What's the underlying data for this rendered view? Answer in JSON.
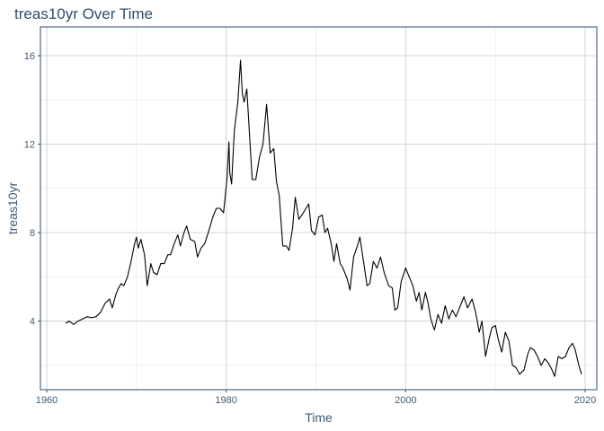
{
  "chart_data": {
    "type": "line",
    "title": "treas10yr Over Time",
    "xlabel": "Time",
    "ylabel": "treas10yr",
    "xlim": [
      1959.3,
      2021.3
    ],
    "ylim": [
      0.9,
      17.3
    ],
    "x_ticks": [
      1960,
      1980,
      2000,
      2020
    ],
    "y_ticks": [
      4,
      8,
      12,
      16
    ],
    "grid": true,
    "series": [
      {
        "color": "#000000",
        "points": [
          [
            1962.1,
            3.9
          ],
          [
            1962.5,
            4.0
          ],
          [
            1963.0,
            3.85
          ],
          [
            1963.5,
            4.0
          ],
          [
            1964.0,
            4.1
          ],
          [
            1964.5,
            4.2
          ],
          [
            1965.0,
            4.15
          ],
          [
            1965.5,
            4.2
          ],
          [
            1966.0,
            4.4
          ],
          [
            1966.5,
            4.8
          ],
          [
            1967.0,
            5.0
          ],
          [
            1967.3,
            4.6
          ],
          [
            1967.7,
            5.2
          ],
          [
            1968.0,
            5.5
          ],
          [
            1968.3,
            5.7
          ],
          [
            1968.6,
            5.6
          ],
          [
            1969.0,
            6.0
          ],
          [
            1969.4,
            6.7
          ],
          [
            1969.8,
            7.5
          ],
          [
            1970.0,
            7.8
          ],
          [
            1970.2,
            7.3
          ],
          [
            1970.5,
            7.7
          ],
          [
            1970.9,
            7.0
          ],
          [
            1971.2,
            5.6
          ],
          [
            1971.6,
            6.6
          ],
          [
            1971.9,
            6.2
          ],
          [
            1972.3,
            6.1
          ],
          [
            1972.7,
            6.6
          ],
          [
            1973.1,
            6.6
          ],
          [
            1973.5,
            7.0
          ],
          [
            1973.8,
            7.0
          ],
          [
            1974.2,
            7.5
          ],
          [
            1974.6,
            7.9
          ],
          [
            1974.9,
            7.4
          ],
          [
            1975.3,
            8.0
          ],
          [
            1975.6,
            8.3
          ],
          [
            1976.0,
            7.7
          ],
          [
            1976.5,
            7.6
          ],
          [
            1976.8,
            6.9
          ],
          [
            1977.2,
            7.3
          ],
          [
            1977.6,
            7.5
          ],
          [
            1978.0,
            8.0
          ],
          [
            1978.5,
            8.7
          ],
          [
            1978.9,
            9.1
          ],
          [
            1979.3,
            9.1
          ],
          [
            1979.7,
            8.9
          ],
          [
            1980.1,
            10.5
          ],
          [
            1980.3,
            12.1
          ],
          [
            1980.4,
            10.7
          ],
          [
            1980.6,
            10.2
          ],
          [
            1980.9,
            12.6
          ],
          [
            1981.3,
            13.9
          ],
          [
            1981.6,
            15.8
          ],
          [
            1981.8,
            14.3
          ],
          [
            1982.0,
            13.9
          ],
          [
            1982.3,
            14.5
          ],
          [
            1982.9,
            10.4
          ],
          [
            1983.3,
            10.4
          ],
          [
            1983.7,
            11.4
          ],
          [
            1984.1,
            12.0
          ],
          [
            1984.5,
            13.8
          ],
          [
            1984.9,
            11.6
          ],
          [
            1985.3,
            11.8
          ],
          [
            1985.6,
            10.3
          ],
          [
            1985.9,
            9.7
          ],
          [
            1986.3,
            7.4
          ],
          [
            1986.7,
            7.4
          ],
          [
            1987.0,
            7.2
          ],
          [
            1987.4,
            8.2
          ],
          [
            1987.7,
            9.6
          ],
          [
            1988.1,
            8.6
          ],
          [
            1988.6,
            8.9
          ],
          [
            1988.9,
            9.1
          ],
          [
            1989.2,
            9.3
          ],
          [
            1989.5,
            8.1
          ],
          [
            1989.9,
            7.9
          ],
          [
            1990.3,
            8.7
          ],
          [
            1990.7,
            8.8
          ],
          [
            1991.0,
            8.0
          ],
          [
            1991.3,
            8.2
          ],
          [
            1991.7,
            7.5
          ],
          [
            1992.0,
            6.7
          ],
          [
            1992.3,
            7.5
          ],
          [
            1992.7,
            6.6
          ],
          [
            1993.0,
            6.4
          ],
          [
            1993.5,
            5.9
          ],
          [
            1993.8,
            5.4
          ],
          [
            1994.2,
            6.9
          ],
          [
            1994.7,
            7.5
          ],
          [
            1994.9,
            7.8
          ],
          [
            1995.3,
            6.7
          ],
          [
            1995.7,
            5.6
          ],
          [
            1996.0,
            5.7
          ],
          [
            1996.4,
            6.7
          ],
          [
            1996.8,
            6.4
          ],
          [
            1997.2,
            6.9
          ],
          [
            1997.6,
            6.2
          ],
          [
            1998.1,
            5.6
          ],
          [
            1998.5,
            5.5
          ],
          [
            1998.8,
            4.5
          ],
          [
            1999.1,
            4.6
          ],
          [
            1999.5,
            5.8
          ],
          [
            2000.0,
            6.4
          ],
          [
            2000.4,
            6.0
          ],
          [
            2000.8,
            5.6
          ],
          [
            2001.2,
            4.9
          ],
          [
            2001.5,
            5.3
          ],
          [
            2001.8,
            4.5
          ],
          [
            2002.2,
            5.3
          ],
          [
            2002.5,
            4.8
          ],
          [
            2002.8,
            4.1
          ],
          [
            2003.2,
            3.6
          ],
          [
            2003.6,
            4.3
          ],
          [
            2004.0,
            3.9
          ],
          [
            2004.4,
            4.7
          ],
          [
            2004.8,
            4.1
          ],
          [
            2005.2,
            4.5
          ],
          [
            2005.6,
            4.2
          ],
          [
            2006.0,
            4.6
          ],
          [
            2006.5,
            5.1
          ],
          [
            2006.9,
            4.6
          ],
          [
            2007.4,
            5.0
          ],
          [
            2007.8,
            4.4
          ],
          [
            2008.2,
            3.5
          ],
          [
            2008.5,
            4.0
          ],
          [
            2008.9,
            2.4
          ],
          [
            2009.3,
            3.2
          ],
          [
            2009.6,
            3.7
          ],
          [
            2010.0,
            3.8
          ],
          [
            2010.3,
            3.2
          ],
          [
            2010.7,
            2.6
          ],
          [
            2011.1,
            3.5
          ],
          [
            2011.5,
            3.1
          ],
          [
            2011.9,
            2.0
          ],
          [
            2012.3,
            1.9
          ],
          [
            2012.7,
            1.6
          ],
          [
            2013.2,
            1.8
          ],
          [
            2013.6,
            2.5
          ],
          [
            2013.9,
            2.8
          ],
          [
            2014.3,
            2.7
          ],
          [
            2014.7,
            2.4
          ],
          [
            2015.1,
            2.0
          ],
          [
            2015.5,
            2.3
          ],
          [
            2015.9,
            2.1
          ],
          [
            2016.3,
            1.8
          ],
          [
            2016.6,
            1.5
          ],
          [
            2017.0,
            2.4
          ],
          [
            2017.4,
            2.3
          ],
          [
            2017.8,
            2.4
          ],
          [
            2018.2,
            2.8
          ],
          [
            2018.6,
            3.0
          ],
          [
            2018.9,
            2.7
          ],
          [
            2019.3,
            2.0
          ],
          [
            2019.6,
            1.6
          ]
        ]
      }
    ]
  }
}
